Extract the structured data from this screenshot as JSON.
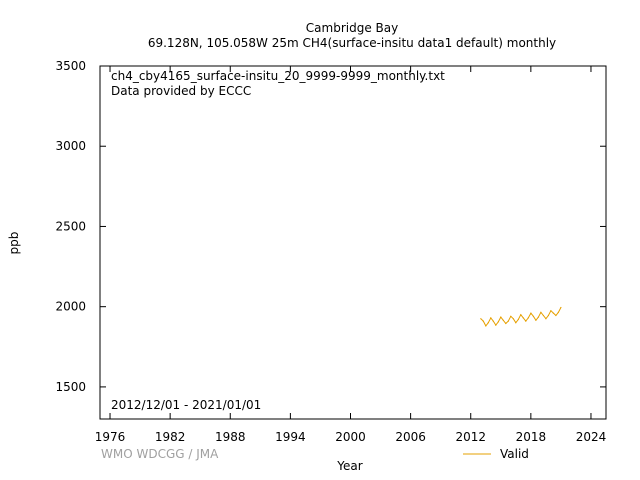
{
  "chart_data": {
    "type": "line",
    "title": "Cambridge Bay",
    "subtitle": "69.128N, 105.058W 25m    CH4(surface-insitu data1 default) monthly",
    "xlabel": "Year",
    "ylabel": "ppb",
    "xlim": [
      1975,
      2025.5
    ],
    "ylim": [
      1300,
      3500
    ],
    "xticks": [
      1976,
      1982,
      1988,
      1994,
      2000,
      2006,
      2012,
      2018,
      2024
    ],
    "yticks": [
      1500,
      2000,
      2500,
      3000,
      3500
    ],
    "grid": false,
    "legend_position": "bottom-right",
    "file_label": "ch4_cby4165_surface-insitu_20_9999-9999_monthly.txt",
    "provider_label": "Data provided by ECCC",
    "date_range": "2012/12/01 - 2021/01/01",
    "watermark": "WMO WDCGG / JMA",
    "colors": {
      "valid": "#e6a000"
    },
    "series": [
      {
        "name": "Valid",
        "x": [
          2013.0,
          2013.25,
          2013.5,
          2013.75,
          2014.0,
          2014.25,
          2014.5,
          2014.75,
          2015.0,
          2015.25,
          2015.5,
          2015.75,
          2016.0,
          2016.25,
          2016.5,
          2016.75,
          2017.0,
          2017.25,
          2017.5,
          2017.75,
          2018.0,
          2018.25,
          2018.5,
          2018.75,
          2019.0,
          2019.25,
          2019.5,
          2019.75,
          2020.0,
          2020.25,
          2020.5,
          2020.75,
          2021.0
        ],
        "y": [
          1925,
          1910,
          1880,
          1900,
          1930,
          1910,
          1885,
          1905,
          1935,
          1915,
          1895,
          1910,
          1940,
          1925,
          1900,
          1920,
          1950,
          1930,
          1910,
          1930,
          1960,
          1940,
          1915,
          1935,
          1965,
          1945,
          1925,
          1945,
          1975,
          1960,
          1945,
          1965,
          1995
        ]
      }
    ]
  }
}
